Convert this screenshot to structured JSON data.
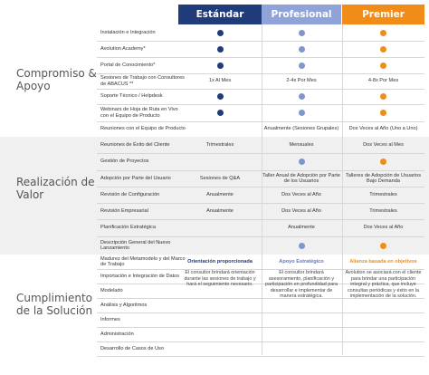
{
  "headers": {
    "standard": "Estándar",
    "professional": "Profesional",
    "premier": "Premier"
  },
  "colors": {
    "standard": "#1f3b7a",
    "professional": "#8fa3d8",
    "premier": "#f28c18"
  },
  "sections": [
    {
      "title_line1": "Compromiso &",
      "title_line2": "Apoyo"
    },
    {
      "title_line1": "Realización de",
      "title_line2": "Valor"
    },
    {
      "title_line1": "Cumplimiento",
      "title_line2": "de la Solución"
    }
  ],
  "rows": [
    {
      "label": "Instalación e Integración",
      "std": "dot",
      "pro": "dot",
      "pre": "dot"
    },
    {
      "label": "Avolution Academy*",
      "std": "dot",
      "pro": "dot",
      "pre": "dot"
    },
    {
      "label": "Portal de Conocimiento*",
      "std": "dot",
      "pro": "dot",
      "pre": "dot"
    },
    {
      "label": "Sesiones de Trabajo con Consultores de ABACUS **",
      "std": "1x Al Mes",
      "pro": "2-4x Por Mes",
      "pre": "4-8x Por Mes"
    },
    {
      "label": "Soporte Técnico / Helpdesk",
      "std": "dot",
      "pro": "dot",
      "pre": "dot"
    },
    {
      "label": "Webinars de Hoja de Ruta en Vivo con el Equipo de Producto",
      "std": "dot",
      "pro": "dot",
      "pre": "dot"
    },
    {
      "label": "Reuniones con el Equipo de Producto",
      "std": "",
      "pro": "Anualmente (Sesiones Grupales)",
      "pre": "Dos Veces al Año (Uno a Uno)"
    },
    {
      "label": "Reuniones de Éxito del Cliente",
      "std": "Trimestrales",
      "pro": "Mensuales",
      "pre": "Dos Veces al Mes"
    },
    {
      "label": "Gestión de Proyectos",
      "std": "",
      "pro": "dot",
      "pre": "dot"
    },
    {
      "label": "Adopción por Parte del Usuario",
      "std": "Sesiones de Q&A",
      "pro": "Taller Anual de Adopción por Parte de los Usuarios",
      "pre": "Talleres de Adopción de Usuarios Bajo Demanda"
    },
    {
      "label": "Revisión de Configuración",
      "std": "Anualmente",
      "pro": "Dos Veces al Año",
      "pre": "Trimestrales"
    },
    {
      "label": "Revisión Empresarial",
      "std": "Anualmente",
      "pro": "Dos Veces al Año",
      "pre": "Trimestrales"
    },
    {
      "label": "Planificación Estratégica",
      "std": "",
      "pro": "Anualmente",
      "pre": "Dos Veces al Año"
    },
    {
      "label": "Descripción General del Nuevo Lanzamiento",
      "std": "",
      "pro": "dot",
      "pre": "dot"
    },
    {
      "label": "Madurez del Metamodelo y del Marco de Trabajo",
      "std": "",
      "pro": "",
      "pre": ""
    },
    {
      "label": "Importación e Integración de Datos",
      "std": "",
      "pro": "",
      "pre": ""
    },
    {
      "label": "Modelado",
      "std": "",
      "pro": "",
      "pre": ""
    },
    {
      "label": "Análisis y Algoritmos",
      "std": "",
      "pro": "",
      "pre": ""
    },
    {
      "label": "Informes",
      "std": "",
      "pro": "",
      "pre": ""
    },
    {
      "label": "Administración",
      "std": "",
      "pro": "",
      "pre": ""
    },
    {
      "label": "Desarrollo de Casos de Uso",
      "std": "",
      "pro": "",
      "pre": ""
    }
  ],
  "services": {
    "standard": {
      "title": "Orientación proporcionada",
      "desc": "El consultor brindará orientación durante las sesiones de trabajo y hará el seguimiento necesario."
    },
    "professional": {
      "title": "Apoyo Estratégico",
      "desc": "El consultor brindará asesoramiento, planificación y participación en profundidad para desarrollar e implementar de manera estratégica."
    },
    "premier": {
      "title": "Alianza basada en objetivos",
      "desc": "Avolution se asociará con el cliente para brindar una participación integral y práctica, que incluye consultas periódicas y éxito en la implementación de la solución."
    }
  }
}
